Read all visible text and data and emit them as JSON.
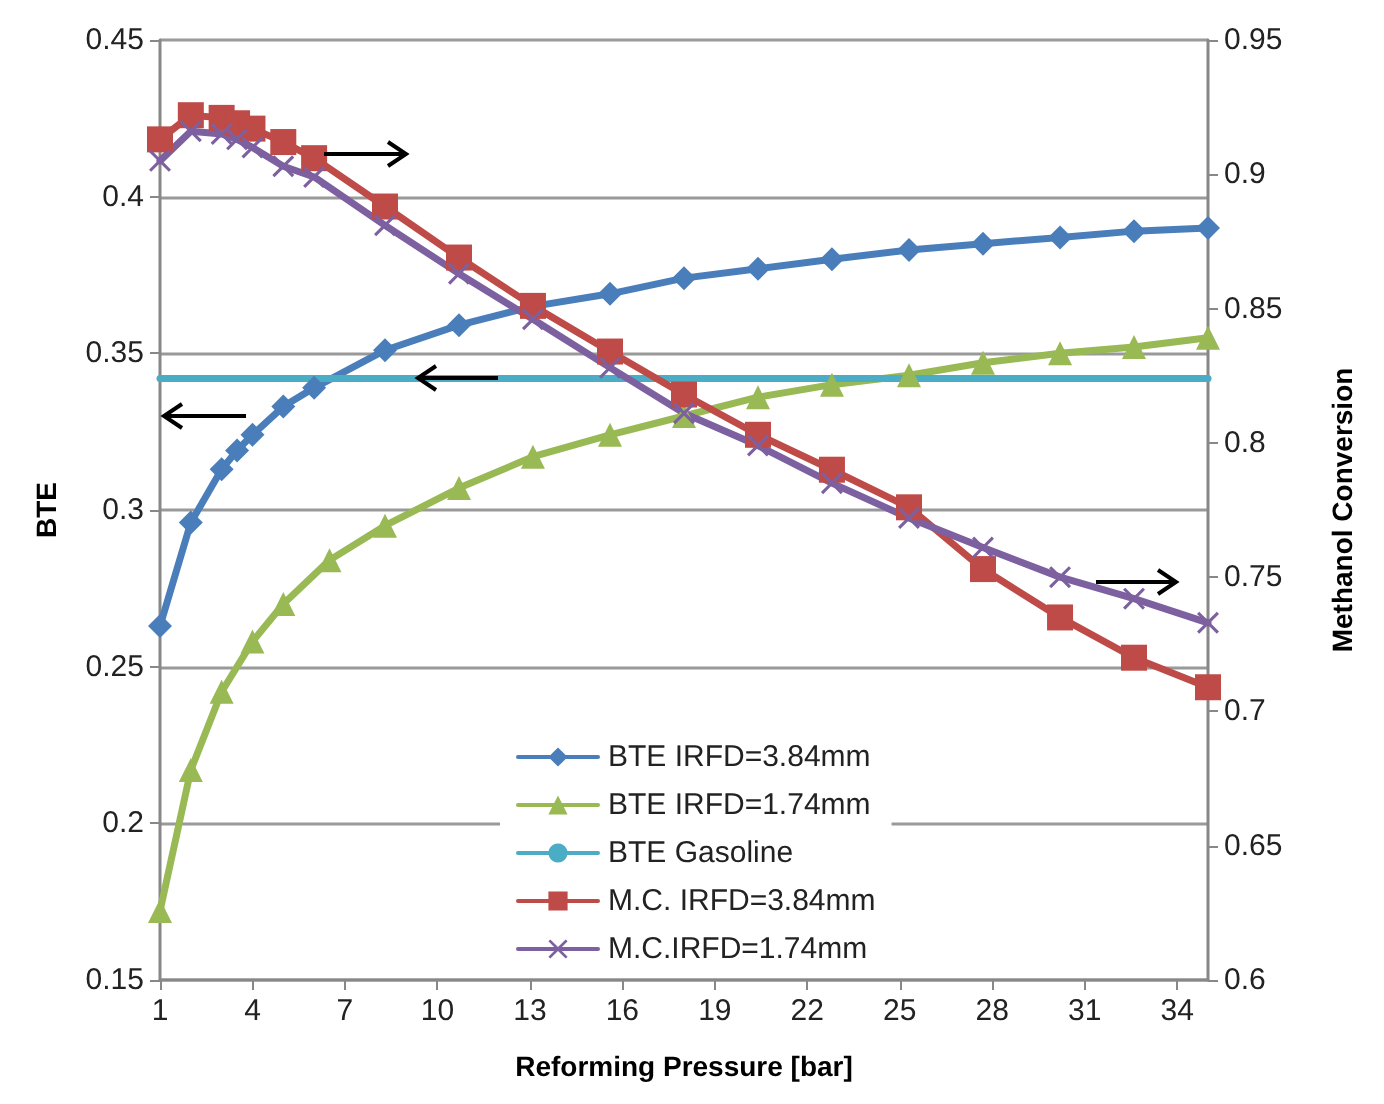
{
  "chart_data": {
    "type": "line",
    "xlabel": "Reforming Pressure [bar]",
    "ylabel": "BTE",
    "y2label": "Methanol Conversion",
    "xlim": [
      1,
      35
    ],
    "xticks": [
      1,
      4,
      7,
      10,
      13,
      16,
      19,
      22,
      25,
      28,
      31,
      34
    ],
    "ylim": [
      0.15,
      0.45
    ],
    "yticks": [
      0.15,
      0.2,
      0.25,
      0.3,
      0.35,
      0.4,
      0.45
    ],
    "y2lim": [
      0.6,
      0.95
    ],
    "y2ticks": [
      0.6,
      0.65,
      0.7,
      0.75,
      0.8,
      0.85,
      0.9,
      0.95
    ],
    "grid": "y",
    "legend": "bottom",
    "series": [
      {
        "name": "BTE IRFD=3.84mm",
        "color": "#4a7ebb",
        "marker": "diamond",
        "x": [
          1,
          2,
          3,
          3.5,
          4,
          5,
          6,
          8.3,
          10.7,
          13.1,
          15.6,
          18,
          20.4,
          22.8,
          25.3,
          27.7,
          30.2,
          32.6,
          35
        ],
        "values": [
          0.263,
          0.296,
          0.313,
          0.319,
          0.324,
          0.333,
          0.339,
          0.351,
          0.359,
          0.365,
          0.369,
          0.374,
          0.377,
          0.38,
          0.383,
          0.385,
          0.387,
          0.389,
          0.39
        ]
      },
      {
        "name": "BTE IRFD=1.74mm",
        "color": "#98b954",
        "marker": "triangle",
        "x": [
          1,
          2,
          3,
          4,
          5,
          6.5,
          8.3,
          10.7,
          13.1,
          15.6,
          18,
          20.4,
          22.8,
          25.3,
          27.7,
          30.2,
          32.6,
          35
        ],
        "values": [
          0.172,
          0.217,
          0.242,
          0.258,
          0.27,
          0.284,
          0.295,
          0.307,
          0.317,
          0.324,
          0.33,
          0.336,
          0.34,
          0.343,
          0.347,
          0.35,
          0.352,
          0.355
        ]
      },
      {
        "name": "BTE Gasoline",
        "color": "#4bacc6",
        "marker": "none",
        "x": [
          1,
          35
        ],
        "values": [
          0.342,
          0.342
        ]
      },
      {
        "name": "M.C. IRFD=3.84mm",
        "color": "#be4b48",
        "marker": "square",
        "axis": "y2",
        "x": [
          1,
          2,
          3,
          3.5,
          4,
          5,
          6,
          8.3,
          10.7,
          13.1,
          15.6,
          18,
          20.4,
          22.8,
          25.3,
          27.7,
          30.2,
          32.6,
          35
        ],
        "values": [
          0.913,
          0.922,
          0.921,
          0.919,
          0.917,
          0.912,
          0.906,
          0.888,
          0.869,
          0.851,
          0.834,
          0.818,
          0.803,
          0.79,
          0.776,
          0.753,
          0.735,
          0.72,
          0.709
        ]
      },
      {
        "name": "M.C.IRFD=1.74mm",
        "color": "#7d60a0",
        "marker": "cross",
        "axis": "y2",
        "x": [
          1,
          2,
          3,
          3.5,
          4,
          5,
          6,
          8.3,
          10.7,
          13.1,
          15.6,
          18,
          20.4,
          22.8,
          25.3,
          27.7,
          30.2,
          32.6,
          35
        ],
        "values": [
          0.905,
          0.916,
          0.915,
          0.913,
          0.91,
          0.903,
          0.899,
          0.881,
          0.863,
          0.846,
          0.828,
          0.811,
          0.799,
          0.785,
          0.772,
          0.761,
          0.75,
          0.742,
          0.733
        ]
      }
    ]
  }
}
